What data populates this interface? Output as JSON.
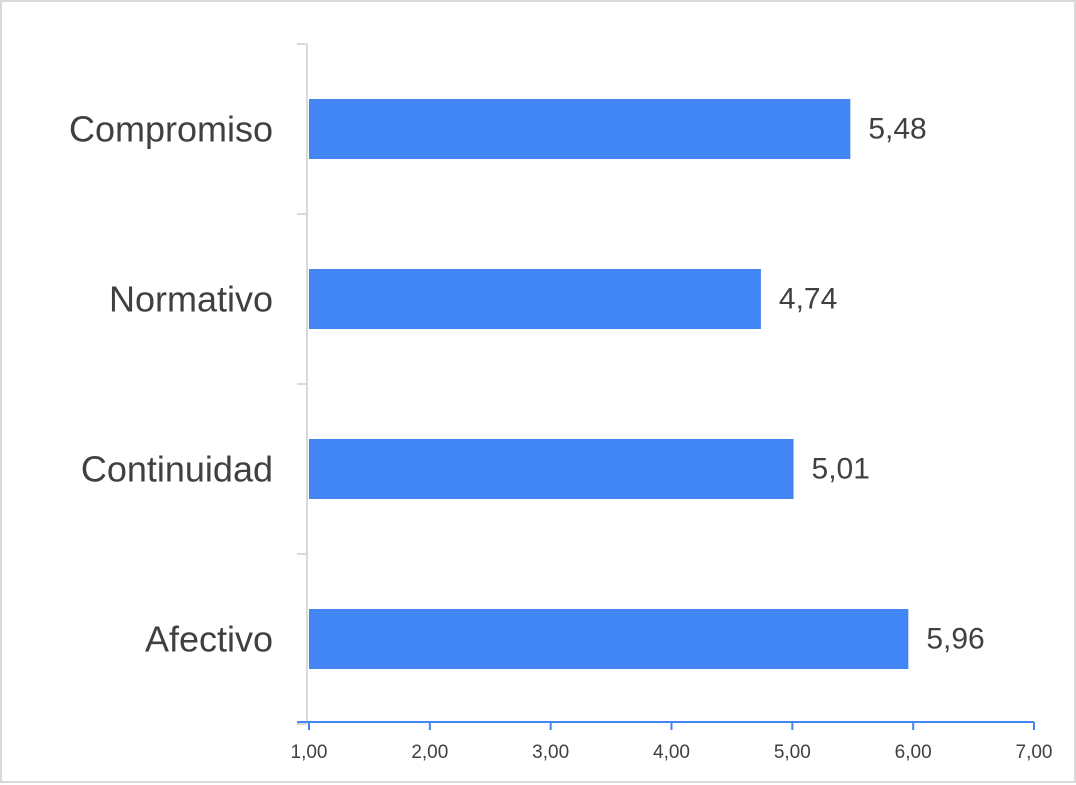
{
  "chart_data": {
    "type": "bar",
    "orientation": "horizontal",
    "categories": [
      "Compromiso",
      "Normativo",
      "Continuidad",
      "Afectivo"
    ],
    "values": [
      5.48,
      4.74,
      5.01,
      5.96
    ],
    "value_labels": [
      "5,48",
      "4,74",
      "5,01",
      "5,96"
    ],
    "x_ticks": [
      1,
      2,
      3,
      4,
      5,
      6,
      7
    ],
    "x_tick_labels": [
      "1,00",
      "2,00",
      "3,00",
      "4,00",
      "5,00",
      "6,00",
      "7,00"
    ],
    "xlim": [
      1,
      7
    ],
    "title": "",
    "xlabel": "",
    "ylabel": "",
    "grid": false,
    "legend": "none",
    "colors": {
      "bar": "#4285f4",
      "x_axis": "#4285f4",
      "y_axis": "#d9d9d9",
      "text": "#404040",
      "frame": "#d9d9d9"
    }
  }
}
